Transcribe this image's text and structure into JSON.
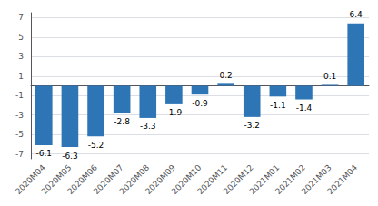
{
  "chart_data": {
    "type": "bar",
    "categories": [
      "2020M04",
      "2020M05",
      "2020M06",
      "2020M07",
      "2020M08",
      "2020M09",
      "2020M10",
      "2020M11",
      "2020M12",
      "2021M01",
      "2021M02",
      "2021M03",
      "2021M04"
    ],
    "values": [
      -6.1,
      -6.3,
      -5.2,
      -2.8,
      -3.3,
      -1.9,
      -0.9,
      0.2,
      -3.2,
      -1.1,
      -1.4,
      0.1,
      6.4
    ],
    "color": "#2e75b6",
    "ylim": [
      -7.5,
      7.5
    ],
    "yticks": [
      -7,
      -5,
      -3,
      -1,
      1,
      3,
      5,
      7
    ],
    "grid": true,
    "data_labels": true
  }
}
